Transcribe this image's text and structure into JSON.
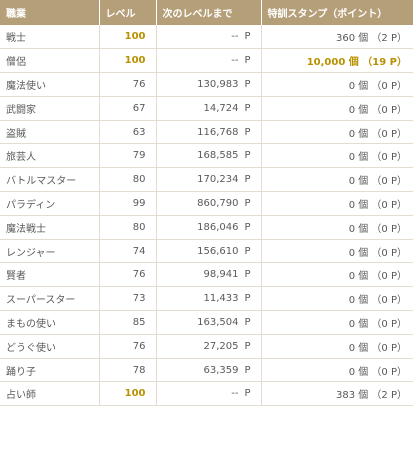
{
  "headers": {
    "job": "職業",
    "level": "レベル",
    "next": "次のレベルまで",
    "stamp": "特訓スタンプ（ポイント）"
  },
  "rows": [
    {
      "job": "戦士",
      "level": "100",
      "exp": "--",
      "unit": "P",
      "stamp": "360 個 （2 P）",
      "level_max": true,
      "stamp_max": false
    },
    {
      "job": "僧侶",
      "level": "100",
      "exp": "--",
      "unit": "P",
      "stamp": "10,000 個 （19 P）",
      "level_max": true,
      "stamp_max": true
    },
    {
      "job": "魔法使い",
      "level": "76",
      "exp": "130,983",
      "unit": "P",
      "stamp": "0 個 （0 P）",
      "level_max": false,
      "stamp_max": false
    },
    {
      "job": "武闘家",
      "level": "67",
      "exp": "14,724",
      "unit": "P",
      "stamp": "0 個 （0 P）",
      "level_max": false,
      "stamp_max": false
    },
    {
      "job": "盗賊",
      "level": "63",
      "exp": "116,768",
      "unit": "P",
      "stamp": "0 個 （0 P）",
      "level_max": false,
      "stamp_max": false
    },
    {
      "job": "旅芸人",
      "level": "79",
      "exp": "168,585",
      "unit": "P",
      "stamp": "0 個 （0 P）",
      "level_max": false,
      "stamp_max": false
    },
    {
      "job": "バトルマスター",
      "level": "80",
      "exp": "170,234",
      "unit": "P",
      "stamp": "0 個 （0 P）",
      "level_max": false,
      "stamp_max": false
    },
    {
      "job": "パラディン",
      "level": "99",
      "exp": "860,790",
      "unit": "P",
      "stamp": "0 個 （0 P）",
      "level_max": false,
      "stamp_max": false
    },
    {
      "job": "魔法戦士",
      "level": "80",
      "exp": "186,046",
      "unit": "P",
      "stamp": "0 個 （0 P）",
      "level_max": false,
      "stamp_max": false
    },
    {
      "job": "レンジャー",
      "level": "74",
      "exp": "156,610",
      "unit": "P",
      "stamp": "0 個 （0 P）",
      "level_max": false,
      "stamp_max": false
    },
    {
      "job": "賢者",
      "level": "76",
      "exp": "98,941",
      "unit": "P",
      "stamp": "0 個 （0 P）",
      "level_max": false,
      "stamp_max": false
    },
    {
      "job": "スーパースター",
      "level": "73",
      "exp": "11,433",
      "unit": "P",
      "stamp": "0 個 （0 P）",
      "level_max": false,
      "stamp_max": false
    },
    {
      "job": "まもの使い",
      "level": "85",
      "exp": "163,504",
      "unit": "P",
      "stamp": "0 個 （0 P）",
      "level_max": false,
      "stamp_max": false
    },
    {
      "job": "どうぐ使い",
      "level": "76",
      "exp": "27,205",
      "unit": "P",
      "stamp": "0 個 （0 P）",
      "level_max": false,
      "stamp_max": false
    },
    {
      "job": "踊り子",
      "level": "78",
      "exp": "63,359",
      "unit": "P",
      "stamp": "0 個 （0 P）",
      "level_max": false,
      "stamp_max": false
    },
    {
      "job": "占い師",
      "level": "100",
      "exp": "--",
      "unit": "P",
      "stamp": "383 個 （2 P）",
      "level_max": true,
      "stamp_max": false
    }
  ],
  "colors": {
    "header_bg": "#b59f78",
    "header_text": "#ffffff",
    "highlight": "#b89000",
    "row_border": "#e3ddd0",
    "text": "#5a5a5a"
  }
}
